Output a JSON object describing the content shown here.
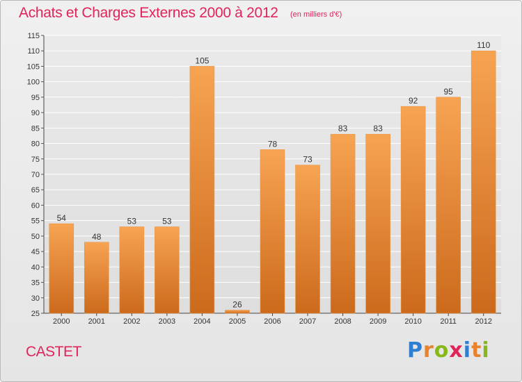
{
  "header": {
    "title": "Achats et Charges Externes 2000 à 2012",
    "subtitle": "(en milliers d'€)"
  },
  "footer": {
    "commune": "CASTET",
    "logo": "Proxiti"
  },
  "colors": {
    "title": "#e0245a",
    "bar_light": "#f7a452",
    "bar_dark": "#cc6a1c",
    "grid": "#ffffff"
  },
  "chart_data": {
    "type": "bar",
    "title": "Achats et Charges Externes 2000 à 2012",
    "subtitle": "(en milliers d'€)",
    "xlabel": "",
    "ylabel": "",
    "categories": [
      "2000",
      "2001",
      "2002",
      "2003",
      "2004",
      "2005",
      "2006",
      "2007",
      "2008",
      "2009",
      "2010",
      "2011",
      "2012"
    ],
    "values": [
      54,
      48,
      53,
      53,
      105,
      26,
      78,
      73,
      83,
      83,
      92,
      95,
      110
    ],
    "ylim": [
      25,
      115
    ],
    "yticks": [
      25,
      30,
      35,
      40,
      45,
      50,
      55,
      60,
      65,
      70,
      75,
      80,
      85,
      90,
      95,
      100,
      105,
      110,
      115
    ],
    "grid": true,
    "legend": "none"
  }
}
